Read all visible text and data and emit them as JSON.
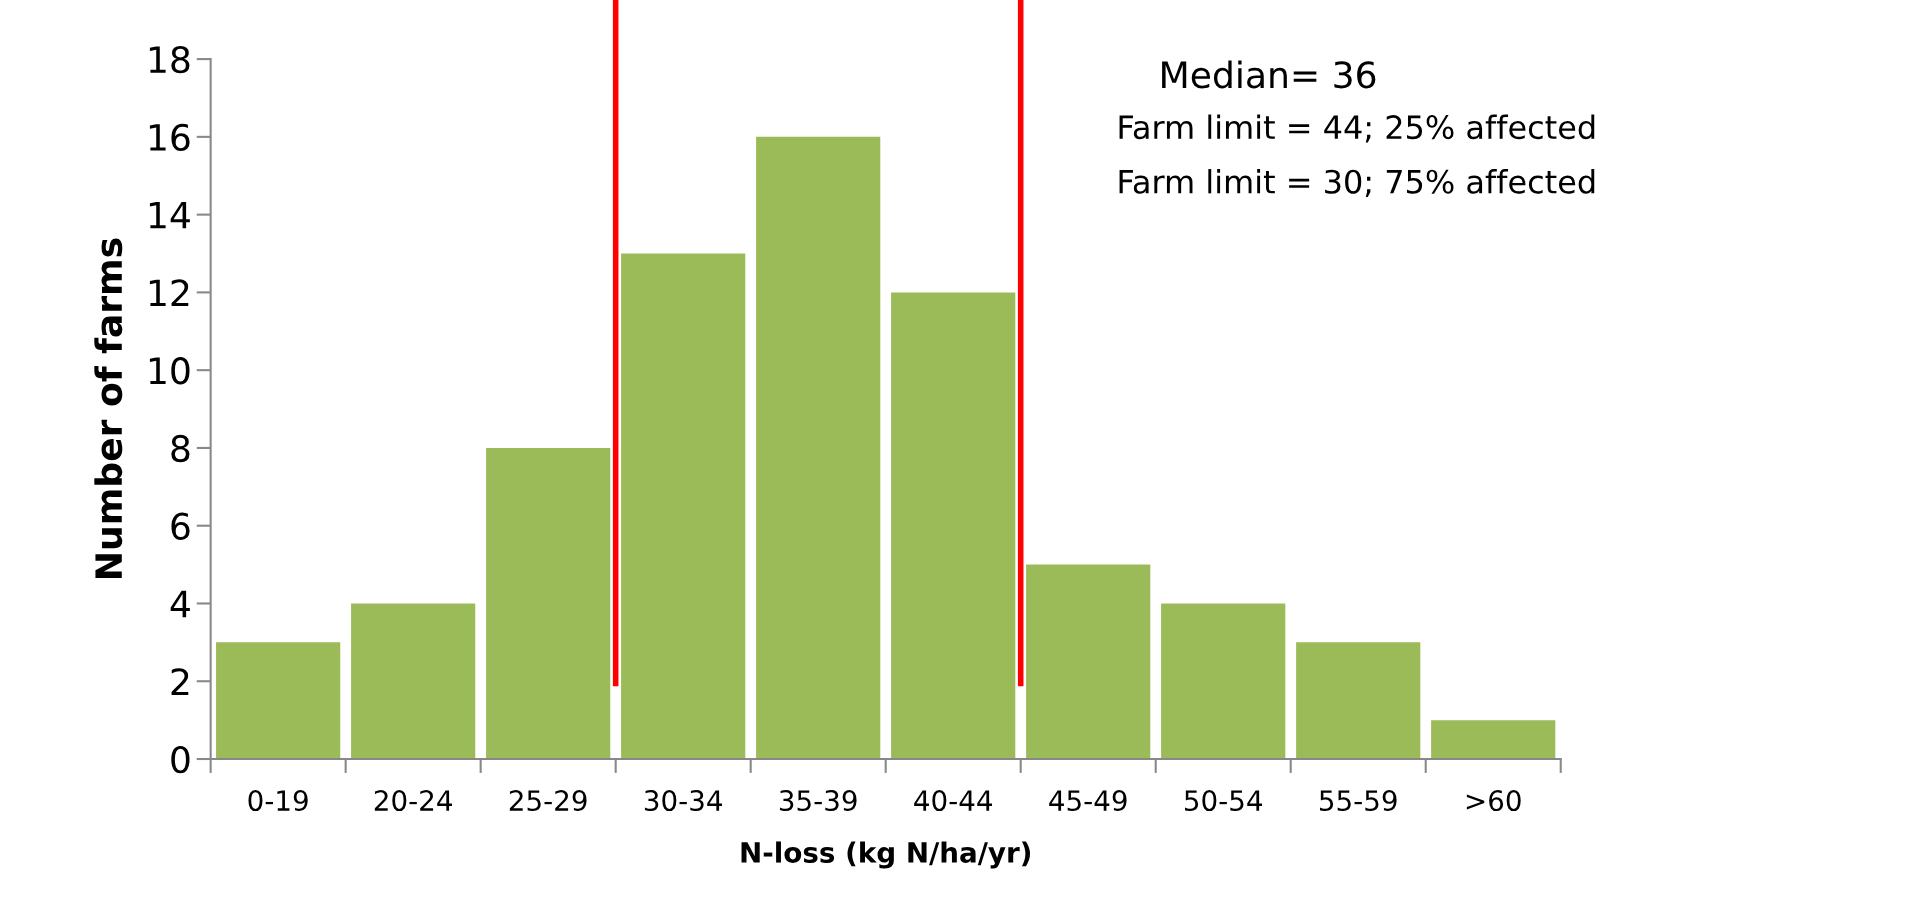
{
  "chart_data": {
    "type": "bar",
    "xlabel": "N-loss (kg N/ha/yr)",
    "ylabel": "Number of farms",
    "categories": [
      "0-19",
      "20-24",
      "25-29",
      "30-34",
      "35-39",
      "40-44",
      "45-49",
      "50-54",
      "55-59",
      ">60"
    ],
    "values": [
      3,
      4,
      8,
      13,
      16,
      12,
      5,
      4,
      3,
      1
    ],
    "color": "#9bbb59",
    "ylim": [
      0,
      18
    ],
    "yticks": [
      0,
      2,
      4,
      6,
      8,
      10,
      12,
      14,
      16,
      18
    ],
    "grid": false,
    "annotations": [
      "Median= 36",
      "Farm limit = 44; 25% affected",
      "Farm limit = 30; 75% affected"
    ]
  }
}
